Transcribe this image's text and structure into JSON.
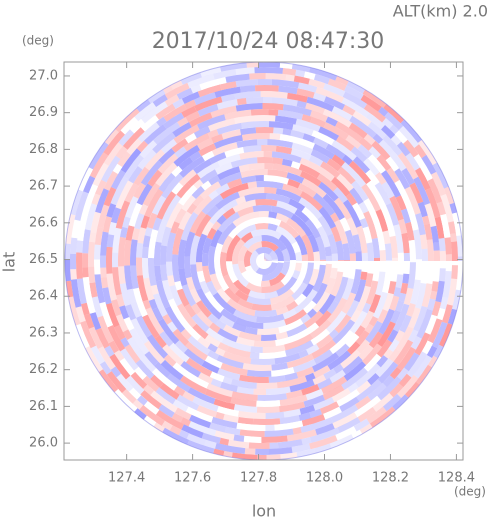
{
  "chart_data": {
    "type": "radar-ppi",
    "title": "2017/10/24 08:47:30",
    "subtitle": "ALT(km) 2.0",
    "x_label": "lon",
    "y_label": "lat",
    "x_unit": "(deg)",
    "y_unit": "(deg)",
    "xlim": [
      127.21,
      128.42
    ],
    "ylim": [
      25.954,
      27.038
    ],
    "xticks": [
      127.4,
      127.6,
      127.8,
      {
        "value": 128,
        "label": "128.0"
      },
      128.2,
      128.4
    ],
    "yticks": [
      {
        "value": 26,
        "label": "26.0"
      },
      26.1,
      26.2,
      26.3,
      26.4,
      26.5,
      26.6,
      26.7,
      26.8,
      26.9,
      {
        "value": 27,
        "label": "27.0"
      }
    ],
    "grid": false
  }
}
